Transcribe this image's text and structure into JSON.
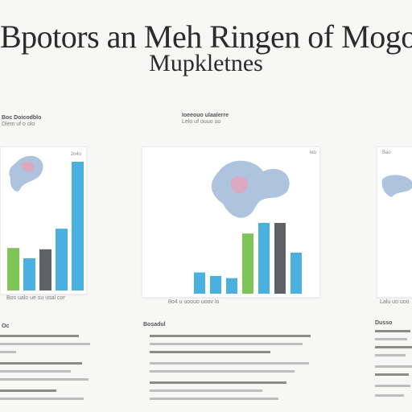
{
  "title": {
    "line1": "Bpotors an Meh Ringen of Mogo",
    "line2": "Mupkletnes"
  },
  "panels": [
    {
      "caption_bold": "Boc Doicodblo",
      "caption": "Dlem uf o olo",
      "corner_label": "2o4o",
      "foot": "Bos ualo ue su usal cor"
    },
    {
      "caption_bold": "Ioeeouo ulaalerre",
      "caption": "Lelo uf ouuo uo",
      "corner_label": "Ieo",
      "foot": "8o4 u uoouo uoov lo"
    },
    {
      "caption_bold": "",
      "caption": "",
      "corner_label": "Bao",
      "foot": "Lalu uo uoo"
    }
  ],
  "notes": [
    {
      "head": "Oc"
    },
    {
      "head": "Bosadul"
    },
    {
      "head": "Dusso"
    }
  ],
  "colors": {
    "blue": "#4ab0e0",
    "green": "#7cc556",
    "gray": "#5f6266",
    "pink": "#e7a0b8"
  },
  "chart_data": [
    {
      "type": "bar",
      "ylim": [
        0,
        100
      ],
      "series": [
        {
          "values": [
            33,
            25,
            32,
            48,
            100
          ],
          "colors": [
            "#7cc556",
            "#4ab0e0",
            "#5f6266",
            "#4ab0e0",
            "#4ab0e0"
          ]
        }
      ]
    },
    {
      "type": "bar",
      "ylim": [
        0,
        100
      ],
      "series": [
        {
          "values": [
            30,
            25,
            22,
            85,
            100,
            100,
            58
          ],
          "colors": [
            "#4ab0e0",
            "#4ab0e0",
            "#4ab0e0",
            "#7cc556",
            "#4ab0e0",
            "#5f6266",
            "#4ab0e0"
          ]
        }
      ]
    },
    {
      "type": "bar",
      "ylim": [
        0,
        100
      ],
      "series": [
        {
          "values": [],
          "colors": []
        }
      ]
    }
  ]
}
